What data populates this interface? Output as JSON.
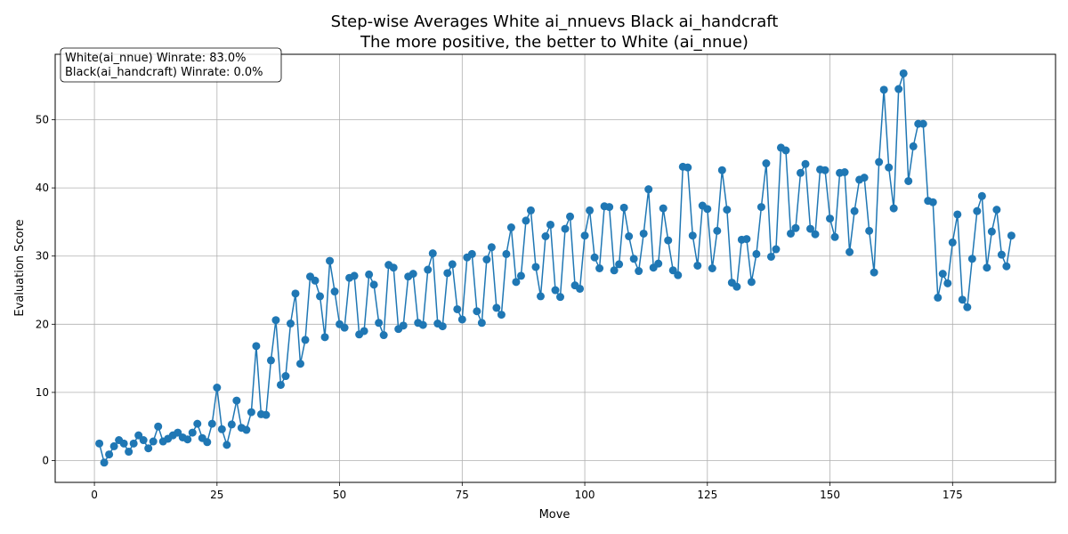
{
  "chart_data": {
    "type": "line",
    "title": "Step-wise Averages White ai_nnuevs Black ai_handcraft",
    "subtitle": "The more positive, the better to White (ai_nnue)",
    "xlabel": "Move",
    "ylabel": "Evaluation Score",
    "xlim": [
      -8,
      196
    ],
    "ylim": [
      -3.2,
      59.6
    ],
    "x_ticks": [
      0,
      25,
      50,
      75,
      100,
      125,
      150,
      175
    ],
    "y_ticks": [
      0,
      10,
      20,
      30,
      40,
      50
    ],
    "grid": true,
    "legend_placement": "top-left",
    "annotations": [
      "White(ai_nnue) Winrate: 83.0%",
      "Black(ai_handcraft) Winrate: 0.0%"
    ],
    "line_color": "#1f77b4",
    "series": [
      {
        "values": [
          [
            1,
            2.5
          ],
          [
            2,
            -0.3
          ],
          [
            3,
            0.9
          ],
          [
            4,
            2.1
          ],
          [
            5,
            3.0
          ],
          [
            6,
            2.5
          ],
          [
            7,
            1.3
          ],
          [
            8,
            2.5
          ],
          [
            9,
            3.7
          ],
          [
            10,
            3.0
          ],
          [
            11,
            1.8
          ],
          [
            12,
            2.8
          ],
          [
            13,
            5.0
          ],
          [
            14,
            2.8
          ],
          [
            15,
            3.2
          ],
          [
            16,
            3.7
          ],
          [
            17,
            4.1
          ],
          [
            18,
            3.4
          ],
          [
            19,
            3.1
          ],
          [
            20,
            4.1
          ],
          [
            21,
            5.4
          ],
          [
            22,
            3.3
          ],
          [
            23,
            2.7
          ],
          [
            24,
            5.4
          ],
          [
            25,
            10.7
          ],
          [
            26,
            4.6
          ],
          [
            27,
            2.3
          ],
          [
            28,
            5.3
          ],
          [
            29,
            8.8
          ],
          [
            30,
            4.8
          ],
          [
            31,
            4.5
          ],
          [
            32,
            7.1
          ],
          [
            33,
            16.8
          ],
          [
            34,
            6.8
          ],
          [
            35,
            6.7
          ],
          [
            36,
            14.7
          ],
          [
            37,
            20.6
          ],
          [
            38,
            11.1
          ],
          [
            39,
            12.4
          ],
          [
            40,
            20.1
          ],
          [
            41,
            24.5
          ],
          [
            42,
            14.2
          ],
          [
            43,
            17.7
          ],
          [
            44,
            27.0
          ],
          [
            45,
            26.4
          ],
          [
            46,
            24.1
          ],
          [
            47,
            18.1
          ],
          [
            48,
            29.3
          ],
          [
            49,
            24.8
          ],
          [
            50,
            20.0
          ],
          [
            51,
            19.5
          ],
          [
            52,
            26.8
          ],
          [
            53,
            27.1
          ],
          [
            54,
            18.5
          ],
          [
            55,
            19.0
          ],
          [
            56,
            27.3
          ],
          [
            57,
            25.8
          ],
          [
            58,
            20.2
          ],
          [
            59,
            18.4
          ],
          [
            60,
            28.7
          ],
          [
            61,
            28.3
          ],
          [
            62,
            19.3
          ],
          [
            63,
            19.8
          ],
          [
            64,
            27.0
          ],
          [
            65,
            27.4
          ],
          [
            66,
            20.2
          ],
          [
            67,
            19.9
          ],
          [
            68,
            28.0
          ],
          [
            69,
            30.4
          ],
          [
            70,
            20.1
          ],
          [
            71,
            19.7
          ],
          [
            72,
            27.5
          ],
          [
            73,
            28.8
          ],
          [
            74,
            22.2
          ],
          [
            75,
            20.7
          ],
          [
            76,
            29.8
          ],
          [
            77,
            30.3
          ],
          [
            78,
            21.9
          ],
          [
            79,
            20.2
          ],
          [
            80,
            29.5
          ],
          [
            81,
            31.3
          ],
          [
            82,
            22.4
          ],
          [
            83,
            21.4
          ],
          [
            84,
            30.3
          ],
          [
            85,
            34.2
          ],
          [
            86,
            26.2
          ],
          [
            87,
            27.1
          ],
          [
            88,
            35.2
          ],
          [
            89,
            36.7
          ],
          [
            90,
            28.4
          ],
          [
            91,
            24.1
          ],
          [
            92,
            32.9
          ],
          [
            93,
            34.6
          ],
          [
            94,
            25.0
          ],
          [
            95,
            24.0
          ],
          [
            96,
            34.0
          ],
          [
            97,
            35.8
          ],
          [
            98,
            25.7
          ],
          [
            99,
            25.2
          ],
          [
            100,
            33.0
          ],
          [
            101,
            36.7
          ],
          [
            102,
            29.8
          ],
          [
            103,
            28.2
          ],
          [
            104,
            37.3
          ],
          [
            105,
            37.2
          ],
          [
            106,
            27.9
          ],
          [
            107,
            28.8
          ],
          [
            108,
            37.1
          ],
          [
            109,
            32.9
          ],
          [
            110,
            29.6
          ],
          [
            111,
            27.8
          ],
          [
            112,
            33.3
          ],
          [
            113,
            39.8
          ],
          [
            114,
            28.3
          ],
          [
            115,
            28.9
          ],
          [
            116,
            37.0
          ],
          [
            117,
            32.3
          ],
          [
            118,
            27.9
          ],
          [
            119,
            27.2
          ],
          [
            120,
            43.1
          ],
          [
            121,
            43.0
          ],
          [
            122,
            33.0
          ],
          [
            123,
            28.6
          ],
          [
            124,
            37.4
          ],
          [
            125,
            36.9
          ],
          [
            126,
            28.2
          ],
          [
            127,
            33.7
          ],
          [
            128,
            42.6
          ],
          [
            129,
            36.8
          ],
          [
            130,
            26.1
          ],
          [
            131,
            25.5
          ],
          [
            132,
            32.4
          ],
          [
            133,
            32.5
          ],
          [
            134,
            26.2
          ],
          [
            135,
            30.3
          ],
          [
            136,
            37.2
          ],
          [
            137,
            43.6
          ],
          [
            138,
            29.9
          ],
          [
            139,
            31.0
          ],
          [
            140,
            45.9
          ],
          [
            141,
            45.5
          ],
          [
            142,
            33.3
          ],
          [
            143,
            34.1
          ],
          [
            144,
            42.2
          ],
          [
            145,
            43.5
          ],
          [
            146,
            34.0
          ],
          [
            147,
            33.2
          ],
          [
            148,
            42.7
          ],
          [
            149,
            42.6
          ],
          [
            150,
            35.5
          ],
          [
            151,
            32.8
          ],
          [
            152,
            42.2
          ],
          [
            153,
            42.3
          ],
          [
            154,
            30.6
          ],
          [
            155,
            36.6
          ],
          [
            156,
            41.2
          ],
          [
            157,
            41.5
          ],
          [
            158,
            33.7
          ],
          [
            159,
            27.6
          ],
          [
            160,
            43.8
          ],
          [
            161,
            54.4
          ],
          [
            162,
            43.0
          ],
          [
            163,
            37.0
          ],
          [
            164,
            54.5
          ],
          [
            165,
            56.8
          ],
          [
            166,
            41.0
          ],
          [
            167,
            46.1
          ],
          [
            168,
            49.4
          ],
          [
            169,
            49.4
          ],
          [
            170,
            38.1
          ],
          [
            171,
            37.9
          ],
          [
            172,
            23.9
          ],
          [
            173,
            27.4
          ],
          [
            174,
            26.0
          ],
          [
            175,
            32.0
          ],
          [
            176,
            36.1
          ],
          [
            177,
            23.6
          ],
          [
            178,
            22.5
          ],
          [
            179,
            29.6
          ],
          [
            180,
            36.6
          ],
          [
            181,
            38.8
          ],
          [
            182,
            28.3
          ],
          [
            183,
            33.6
          ],
          [
            184,
            36.8
          ],
          [
            185,
            30.2
          ],
          [
            186,
            28.5
          ],
          [
            187,
            33.0
          ]
        ]
      }
    ]
  }
}
